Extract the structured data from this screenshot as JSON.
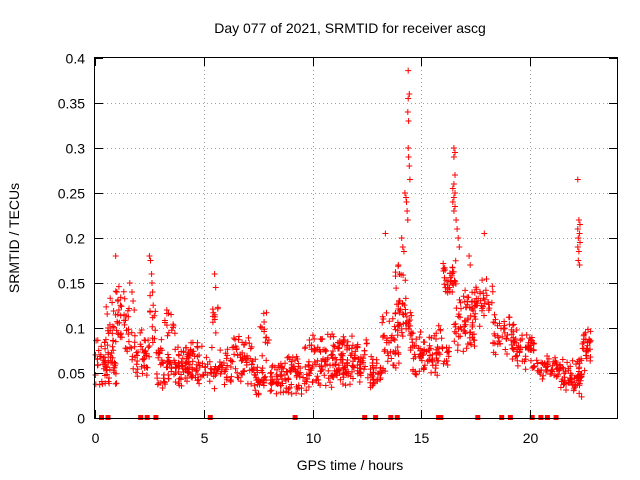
{
  "chart_data": {
    "type": "scatter",
    "title": "Day 077 of 2021, SRMTID for receiver ascg",
    "xlabel": "GPS time / hours",
    "ylabel": "SRMTID / TECUs",
    "xlim": [
      0,
      24
    ],
    "ylim": [
      0,
      0.4
    ],
    "x_ticks": [
      0,
      5,
      10,
      15,
      20
    ],
    "x_tick_labels": [
      "0",
      "5",
      "10",
      "15",
      "20"
    ],
    "y_ticks": [
      0,
      0.05,
      0.1,
      0.15,
      0.2,
      0.25,
      0.3,
      0.35,
      0.4
    ],
    "y_tick_labels": [
      "0",
      "0.05",
      "0.1",
      "0.15",
      "0.2",
      "0.25",
      "0.3",
      "0.35",
      "0.4"
    ],
    "grid": true,
    "marker": "plus",
    "series_color": "#ff0000",
    "clusters": [
      {
        "x0": 0.0,
        "x1": 1.0,
        "ymin": 0.03,
        "ymax": 0.09,
        "n": 60
      },
      {
        "x0": 0.5,
        "x1": 1.6,
        "ymin": 0.06,
        "ymax": 0.15,
        "n": 55
      },
      {
        "x0": 1.6,
        "x1": 2.5,
        "ymin": 0.04,
        "ymax": 0.1,
        "n": 45
      },
      {
        "x0": 2.5,
        "x1": 2.8,
        "ymin": 0.06,
        "ymax": 0.16,
        "n": 12
      },
      {
        "x0": 2.8,
        "x1": 5.3,
        "ymin": 0.03,
        "ymax": 0.09,
        "n": 150
      },
      {
        "x0": 3.2,
        "x1": 3.7,
        "ymin": 0.08,
        "ymax": 0.12,
        "n": 12
      },
      {
        "x0": 5.3,
        "x1": 6.3,
        "ymin": 0.03,
        "ymax": 0.08,
        "n": 45
      },
      {
        "x0": 5.4,
        "x1": 5.7,
        "ymin": 0.09,
        "ymax": 0.13,
        "n": 10
      },
      {
        "x0": 6.3,
        "x1": 7.3,
        "ymin": 0.03,
        "ymax": 0.1,
        "n": 55
      },
      {
        "x0": 7.3,
        "x1": 8.8,
        "ymin": 0.02,
        "ymax": 0.07,
        "n": 80
      },
      {
        "x0": 7.6,
        "x1": 8.0,
        "ymin": 0.07,
        "ymax": 0.12,
        "n": 12
      },
      {
        "x0": 8.8,
        "x1": 9.8,
        "ymin": 0.02,
        "ymax": 0.08,
        "n": 55
      },
      {
        "x0": 9.8,
        "x1": 12.5,
        "ymin": 0.03,
        "ymax": 0.09,
        "n": 170
      },
      {
        "x0": 10.0,
        "x1": 12.2,
        "ymin": 0.07,
        "ymax": 0.1,
        "n": 25
      },
      {
        "x0": 12.5,
        "x1": 13.2,
        "ymin": 0.03,
        "ymax": 0.07,
        "n": 35
      },
      {
        "x0": 13.2,
        "x1": 14.0,
        "ymin": 0.05,
        "ymax": 0.12,
        "n": 45
      },
      {
        "x0": 13.8,
        "x1": 14.3,
        "ymin": 0.09,
        "ymax": 0.17,
        "n": 25
      },
      {
        "x0": 14.1,
        "x1": 14.6,
        "ymin": 0.07,
        "ymax": 0.13,
        "n": 25
      },
      {
        "x0": 14.6,
        "x1": 15.8,
        "ymin": 0.04,
        "ymax": 0.1,
        "n": 70
      },
      {
        "x0": 15.8,
        "x1": 16.3,
        "ymin": 0.05,
        "ymax": 0.11,
        "n": 20
      },
      {
        "x0": 16.0,
        "x1": 16.6,
        "ymin": 0.13,
        "ymax": 0.18,
        "n": 35
      },
      {
        "x0": 16.5,
        "x1": 17.5,
        "ymin": 0.06,
        "ymax": 0.14,
        "n": 55
      },
      {
        "x0": 17.0,
        "x1": 18.3,
        "ymin": 0.1,
        "ymax": 0.16,
        "n": 50
      },
      {
        "x0": 18.3,
        "x1": 19.3,
        "ymin": 0.06,
        "ymax": 0.12,
        "n": 50
      },
      {
        "x0": 19.3,
        "x1": 20.2,
        "ymin": 0.05,
        "ymax": 0.1,
        "n": 50
      },
      {
        "x0": 20.2,
        "x1": 21.4,
        "ymin": 0.04,
        "ymax": 0.07,
        "n": 50
      },
      {
        "x0": 21.4,
        "x1": 22.4,
        "ymin": 0.02,
        "ymax": 0.07,
        "n": 70
      },
      {
        "x0": 22.4,
        "x1": 22.8,
        "ymin": 0.05,
        "ymax": 0.11,
        "n": 30
      }
    ],
    "spikes": [
      [
        0.95,
        0.18
      ],
      [
        1.0,
        0.14
      ],
      [
        1.05,
        0.13
      ],
      [
        1.1,
        0.12
      ],
      [
        1.6,
        0.15
      ],
      [
        1.7,
        0.14
      ],
      [
        1.75,
        0.13
      ],
      [
        1.8,
        0.12
      ],
      [
        2.5,
        0.18
      ],
      [
        2.55,
        0.175
      ],
      [
        2.6,
        0.16
      ],
      [
        2.62,
        0.15
      ],
      [
        2.65,
        0.14
      ],
      [
        3.3,
        0.12
      ],
      [
        3.5,
        0.115
      ],
      [
        5.5,
        0.16
      ],
      [
        5.55,
        0.145
      ],
      [
        13.35,
        0.205
      ],
      [
        13.95,
        0.17
      ],
      [
        14.0,
        0.16
      ],
      [
        14.1,
        0.2
      ],
      [
        14.15,
        0.19
      ],
      [
        14.2,
        0.185
      ],
      [
        14.25,
        0.25
      ],
      [
        14.3,
        0.245
      ],
      [
        14.32,
        0.24
      ],
      [
        14.35,
        0.23
      ],
      [
        14.38,
        0.22
      ],
      [
        14.4,
        0.3
      ],
      [
        14.42,
        0.29
      ],
      [
        14.45,
        0.28
      ],
      [
        14.48,
        0.265
      ],
      [
        14.38,
        0.34
      ],
      [
        14.42,
        0.33
      ],
      [
        14.4,
        0.355
      ],
      [
        14.45,
        0.36
      ],
      [
        14.4,
        0.386
      ],
      [
        16.5,
        0.3
      ],
      [
        16.55,
        0.295
      ],
      [
        16.5,
        0.29
      ],
      [
        16.55,
        0.27
      ],
      [
        16.5,
        0.26
      ],
      [
        16.45,
        0.255
      ],
      [
        16.55,
        0.25
      ],
      [
        16.5,
        0.245
      ],
      [
        16.45,
        0.24
      ],
      [
        16.55,
        0.235
      ],
      [
        16.5,
        0.23
      ],
      [
        16.6,
        0.22
      ],
      [
        16.65,
        0.21
      ],
      [
        16.7,
        0.2
      ],
      [
        16.75,
        0.19
      ],
      [
        17.2,
        0.18
      ],
      [
        17.25,
        0.17
      ],
      [
        17.9,
        0.205
      ],
      [
        22.2,
        0.265
      ],
      [
        22.25,
        0.22
      ],
      [
        22.3,
        0.215
      ],
      [
        22.2,
        0.21
      ],
      [
        22.28,
        0.205
      ],
      [
        22.22,
        0.2
      ],
      [
        22.3,
        0.195
      ],
      [
        22.2,
        0.19
      ],
      [
        22.25,
        0.185
      ],
      [
        22.22,
        0.175
      ],
      [
        22.28,
        0.17
      ]
    ],
    "zero_markers": [
      0.3,
      0.6,
      2.1,
      2.4,
      2.8,
      5.3,
      9.2,
      12.4,
      12.9,
      13.6,
      13.9,
      15.8,
      15.9,
      17.6,
      18.7,
      19.1,
      20.1,
      20.5,
      20.8,
      21.2
    ]
  }
}
